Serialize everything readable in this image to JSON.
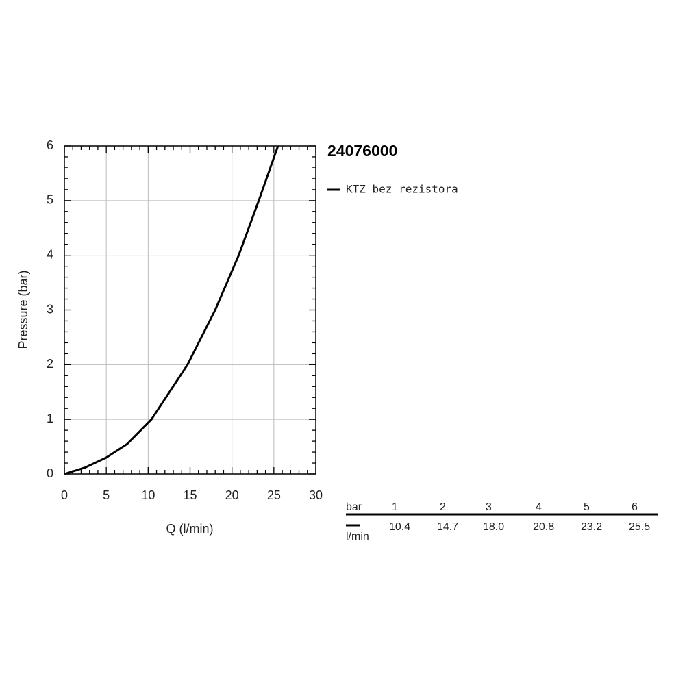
{
  "chart_data": {
    "type": "line",
    "title": "24076000",
    "x_label": "Q (l/min)",
    "y_label": "Pressure (bar)",
    "x": [
      0,
      2.5,
      5,
      7.5,
      10.4,
      14.7,
      18.0,
      20.8,
      23.2,
      25.5
    ],
    "series": [
      {
        "name": "KTZ bez rezistora",
        "color": "#000000",
        "values": [
          0,
          0.12,
          0.3,
          0.55,
          1,
          2,
          3,
          4,
          5,
          6
        ]
      }
    ],
    "xlim": [
      0,
      30
    ],
    "xticks": [
      0,
      5,
      10,
      15,
      20,
      25,
      30
    ],
    "ylim": [
      0,
      6
    ],
    "yticks": [
      0,
      1,
      2,
      3,
      4,
      5,
      6
    ],
    "grid": true
  },
  "table": {
    "header": "bar",
    "unit": "l/min",
    "pressures": [
      1,
      2,
      3,
      4,
      5,
      6
    ],
    "flows": [
      "10.4",
      "14.7",
      "18.0",
      "20.8",
      "23.2",
      "25.5"
    ]
  }
}
